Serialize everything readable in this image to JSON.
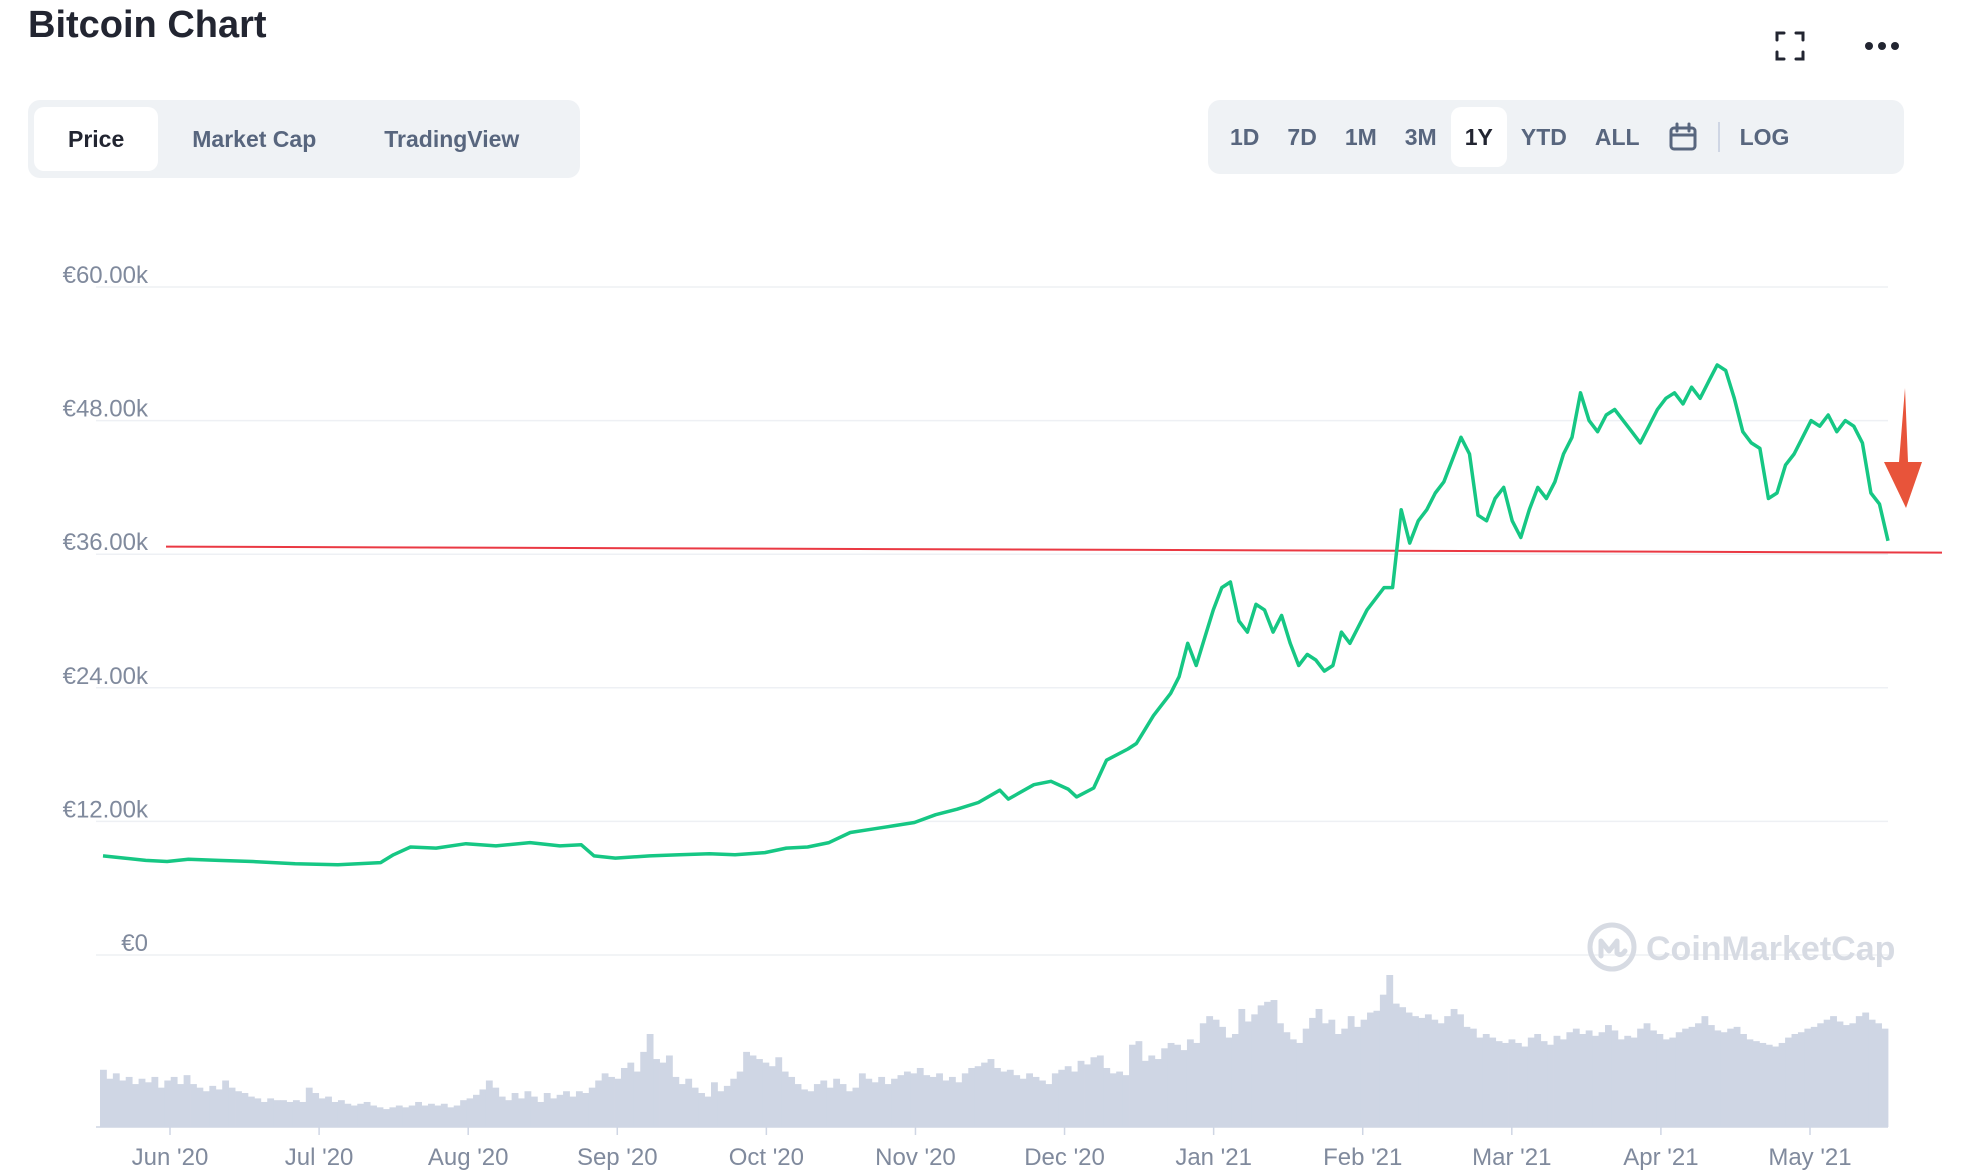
{
  "header": {
    "title": "Bitcoin Chart"
  },
  "icons": {
    "fullscreen": "fullscreen-icon",
    "more": "more-icon",
    "calendar": "calendar-icon"
  },
  "tabs": [
    {
      "label": "Price",
      "active": true
    },
    {
      "label": "Market Cap",
      "active": false
    },
    {
      "label": "TradingView",
      "active": false
    }
  ],
  "ranges": [
    {
      "label": "1D",
      "active": false
    },
    {
      "label": "7D",
      "active": false
    },
    {
      "label": "1M",
      "active": false
    },
    {
      "label": "3M",
      "active": false
    },
    {
      "label": "1Y",
      "active": true
    },
    {
      "label": "YTD",
      "active": false
    },
    {
      "label": "ALL",
      "active": false
    }
  ],
  "log_label": "LOG",
  "watermark": "CoinMarketCap",
  "colors": {
    "price_line": "#16c784",
    "reference_line": "#ea3943",
    "arrow": "#e8543a",
    "volume_bars": "#cfd6e4",
    "grid": "#eef0f4"
  },
  "chart_data": {
    "type": "line",
    "y_axis": {
      "ticks": [
        "€60.00k",
        "€48.00k",
        "€36.00k",
        "€24.00k",
        "€12.00k",
        "€0"
      ],
      "ylim": [
        0,
        60000
      ]
    },
    "x_axis": {
      "ticks": [
        "Jun '20",
        "Jul '20",
        "Aug '20",
        "Sep '20",
        "Oct '20",
        "Nov '20",
        "Dec '20",
        "Jan '21",
        "Feb '21",
        "Mar '21",
        "Apr '21",
        "May '21"
      ]
    },
    "series": [
      {
        "values": [
          [
            0,
            8900
          ],
          [
            5,
            8700
          ],
          [
            10,
            8500
          ],
          [
            15,
            8400
          ],
          [
            20,
            8600
          ],
          [
            27,
            8500
          ],
          [
            35,
            8400
          ],
          [
            45,
            8200
          ],
          [
            55,
            8100
          ],
          [
            65,
            8300
          ],
          [
            68,
            9000
          ],
          [
            72,
            9700
          ],
          [
            78,
            9600
          ],
          [
            85,
            10000
          ],
          [
            92,
            9800
          ],
          [
            100,
            10100
          ],
          [
            107,
            9800
          ],
          [
            112,
            9900
          ],
          [
            115,
            8900
          ],
          [
            120,
            8700
          ],
          [
            128,
            8900
          ],
          [
            135,
            9000
          ],
          [
            142,
            9100
          ],
          [
            148,
            9000
          ],
          [
            155,
            9200
          ],
          [
            160,
            9600
          ],
          [
            165,
            9700
          ],
          [
            170,
            10100
          ],
          [
            175,
            11000
          ],
          [
            180,
            11300
          ],
          [
            185,
            11600
          ],
          [
            190,
            11900
          ],
          [
            195,
            12600
          ],
          [
            200,
            13100
          ],
          [
            205,
            13700
          ],
          [
            210,
            14800
          ],
          [
            212,
            14000
          ],
          [
            218,
            15300
          ],
          [
            222,
            15600
          ],
          [
            226,
            14900
          ],
          [
            228,
            14200
          ],
          [
            232,
            15000
          ],
          [
            235,
            17500
          ],
          [
            240,
            18500
          ],
          [
            242,
            19000
          ],
          [
            246,
            21500
          ],
          [
            250,
            23500
          ],
          [
            252,
            25000
          ],
          [
            254,
            28000
          ],
          [
            256,
            26000
          ],
          [
            258,
            28500
          ],
          [
            260,
            31000
          ],
          [
            262,
            33000
          ],
          [
            264,
            33500
          ],
          [
            266,
            30000
          ],
          [
            268,
            29000
          ],
          [
            270,
            31500
          ],
          [
            272,
            31000
          ],
          [
            274,
            29000
          ],
          [
            276,
            30500
          ],
          [
            278,
            28000
          ],
          [
            280,
            26000
          ],
          [
            282,
            27000
          ],
          [
            284,
            26500
          ],
          [
            286,
            25500
          ],
          [
            288,
            26000
          ],
          [
            290,
            29000
          ],
          [
            292,
            28000
          ],
          [
            294,
            29500
          ],
          [
            296,
            31000
          ],
          [
            298,
            32000
          ],
          [
            300,
            33000
          ],
          [
            302,
            33000
          ],
          [
            304,
            40000
          ],
          [
            306,
            37000
          ],
          [
            308,
            39000
          ],
          [
            310,
            40000
          ],
          [
            312,
            41500
          ],
          [
            314,
            42500
          ],
          [
            316,
            44500
          ],
          [
            318,
            46500
          ],
          [
            320,
            45000
          ],
          [
            322,
            39500
          ],
          [
            324,
            39000
          ],
          [
            326,
            41000
          ],
          [
            328,
            42000
          ],
          [
            330,
            39000
          ],
          [
            332,
            37500
          ],
          [
            334,
            40000
          ],
          [
            336,
            42000
          ],
          [
            338,
            41000
          ],
          [
            340,
            42500
          ],
          [
            342,
            45000
          ],
          [
            344,
            46500
          ],
          [
            346,
            50500
          ],
          [
            348,
            48000
          ],
          [
            350,
            47000
          ],
          [
            352,
            48500
          ],
          [
            354,
            49000
          ],
          [
            356,
            48000
          ],
          [
            358,
            47000
          ],
          [
            360,
            46000
          ],
          [
            362,
            47500
          ],
          [
            364,
            49000
          ],
          [
            366,
            50000
          ],
          [
            368,
            50500
          ],
          [
            370,
            49500
          ],
          [
            372,
            51000
          ],
          [
            374,
            50000
          ],
          [
            376,
            51500
          ],
          [
            378,
            53000
          ],
          [
            380,
            52500
          ],
          [
            382,
            50000
          ],
          [
            384,
            47000
          ],
          [
            386,
            46000
          ],
          [
            388,
            45500
          ],
          [
            390,
            41000
          ],
          [
            392,
            41500
          ],
          [
            394,
            44000
          ],
          [
            396,
            45000
          ],
          [
            398,
            46500
          ],
          [
            400,
            48000
          ],
          [
            402,
            47500
          ],
          [
            404,
            48500
          ],
          [
            406,
            47000
          ],
          [
            408,
            48000
          ],
          [
            410,
            47500
          ],
          [
            412,
            46000
          ],
          [
            414,
            41500
          ],
          [
            416,
            40500
          ],
          [
            418,
            37200
          ]
        ]
      }
    ],
    "reference_line": {
      "value": 36500
    },
    "volume": {
      "values": [
        32,
        27,
        30,
        26,
        28,
        24,
        27,
        25,
        28,
        22,
        26,
        28,
        24,
        29,
        24,
        22,
        20,
        23,
        21,
        26,
        22,
        20,
        19,
        17,
        16,
        14,
        16,
        15,
        15,
        14,
        15,
        14,
        22,
        19,
        16,
        17,
        14,
        15,
        13,
        12,
        13,
        14,
        12,
        11,
        10,
        11,
        12,
        11,
        12,
        14,
        12,
        13,
        12,
        13,
        11,
        12,
        15,
        16,
        18,
        21,
        26,
        22,
        17,
        15,
        19,
        16,
        20,
        17,
        14,
        19,
        16,
        18,
        20,
        17,
        20,
        19,
        22,
        26,
        30,
        28,
        27,
        33,
        36,
        31,
        42,
        52,
        38,
        36,
        40,
        28,
        24,
        27,
        22,
        19,
        17,
        25,
        20,
        23,
        27,
        31,
        42,
        40,
        38,
        36,
        34,
        39,
        31,
        28,
        24,
        21,
        20,
        24,
        26,
        22,
        27,
        24,
        20,
        22,
        30,
        27,
        25,
        28,
        24,
        27,
        29,
        31,
        30,
        33,
        29,
        28,
        30,
        26,
        28,
        25,
        30,
        33,
        34,
        36,
        38,
        33,
        31,
        32,
        29,
        27,
        30,
        28,
        26,
        24,
        30,
        32,
        34,
        31,
        37,
        35,
        39,
        40,
        33,
        30,
        31,
        29,
        46,
        48,
        37,
        40,
        38,
        44,
        47,
        46,
        43,
        49,
        47,
        58,
        62,
        60,
        56,
        50,
        52,
        66,
        59,
        63,
        68,
        70,
        71,
        58,
        53,
        49,
        47,
        55,
        61,
        66,
        58,
        60,
        52,
        55,
        62,
        56,
        60,
        64,
        65,
        74,
        85,
        69,
        67,
        64,
        62,
        61,
        63,
        60,
        58,
        62,
        66,
        63,
        56,
        55,
        50,
        52,
        50,
        48,
        47,
        49,
        47,
        45,
        50,
        52,
        48,
        46,
        51,
        49,
        53,
        55,
        52,
        54,
        51,
        53,
        57,
        54,
        49,
        51,
        50,
        55,
        58,
        54,
        52,
        49,
        50,
        53,
        55,
        56,
        58,
        62,
        57,
        54,
        53,
        55,
        56,
        52,
        49,
        48,
        47,
        46,
        45,
        47,
        50,
        52,
        53,
        55,
        56,
        58,
        60,
        62,
        59,
        57,
        58,
        62,
        64,
        60,
        58,
        55
      ]
    }
  }
}
